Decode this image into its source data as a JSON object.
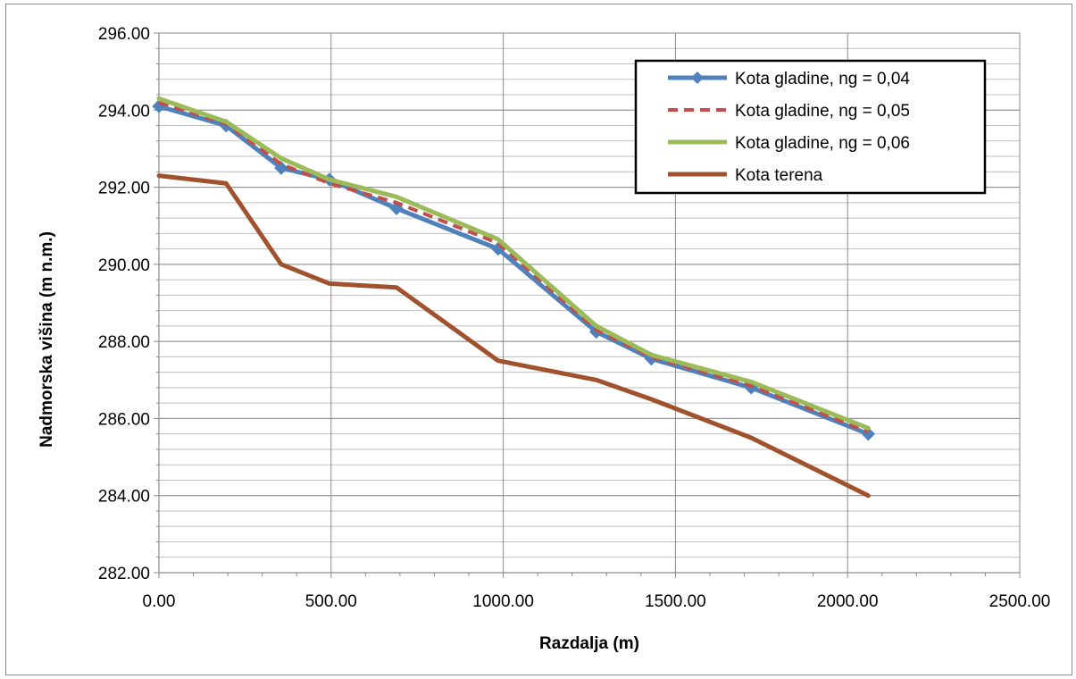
{
  "chart_data": {
    "type": "line",
    "xlabel": "Razdalja (m)",
    "ylabel": "Nadmorska višina (m n.m.)",
    "xlim": [
      0,
      2500
    ],
    "ylim": [
      282,
      296
    ],
    "xticks": [
      "0.00",
      "500.00",
      "1000.00",
      "1500.00",
      "2000.00",
      "2500.00"
    ],
    "yticks": [
      "282.00",
      "284.00",
      "286.00",
      "288.00",
      "290.00",
      "292.00",
      "294.00",
      "296.00"
    ],
    "grid": true,
    "legend_position": "top-right",
    "series": [
      {
        "name": "Kota gladine, ng = 0,04",
        "color": "#4f81bd",
        "marker": "diamond",
        "x": [
          0,
          195,
          355,
          495,
          690,
          985,
          1270,
          1430,
          1720,
          2060
        ],
        "y": [
          294.1,
          293.6,
          292.5,
          292.2,
          291.45,
          290.4,
          288.25,
          287.55,
          286.8,
          285.6
        ]
      },
      {
        "name": "Kota gladine, ng = 0,05",
        "color": "#c0504d",
        "dash": true,
        "x": [
          0,
          195,
          355,
          495,
          690,
          985,
          1270,
          1430,
          1720,
          2060
        ],
        "y": [
          294.2,
          293.65,
          292.6,
          292.1,
          291.6,
          290.55,
          288.3,
          287.6,
          286.85,
          285.65
        ]
      },
      {
        "name": "Kota gladine, ng = 0,06",
        "color": "#9bbb59",
        "x": [
          0,
          195,
          355,
          495,
          690,
          985,
          1270,
          1430,
          1720,
          2060
        ],
        "y": [
          294.3,
          293.7,
          292.75,
          292.2,
          291.75,
          290.65,
          288.4,
          287.65,
          286.95,
          285.75
        ]
      },
      {
        "name": "Kota terena",
        "color": "#a0522d",
        "x": [
          0,
          195,
          355,
          495,
          690,
          985,
          1270,
          1430,
          1720,
          2060
        ],
        "y": [
          292.3,
          292.1,
          290.0,
          289.5,
          289.4,
          287.5,
          287.0,
          286.5,
          285.5,
          284.0
        ]
      }
    ]
  }
}
